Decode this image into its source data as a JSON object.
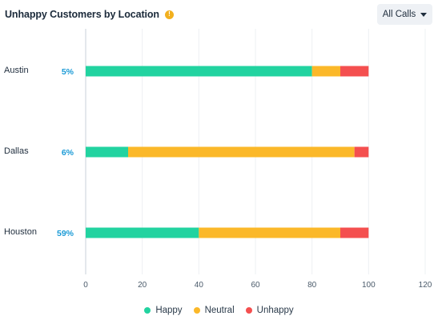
{
  "header": {
    "title": "Unhappy Customers by Location",
    "info_icon": "info-icon"
  },
  "filter": {
    "label": "All Calls",
    "icon": "caret-down-icon"
  },
  "colors": {
    "happy": "#22d3a0",
    "neutral": "#fbb829",
    "unhappy": "#f44f4f",
    "percent": "#1a9ad6"
  },
  "chart_data": {
    "type": "bar",
    "orientation": "horizontal",
    "stacked": true,
    "title": "Unhappy Customers by Location",
    "categories": [
      "Austin",
      "Dallas",
      "Houston"
    ],
    "category_percentages": [
      "5%",
      "6%",
      "59%"
    ],
    "series": [
      {
        "name": "Happy",
        "values": [
          80,
          15,
          40
        ]
      },
      {
        "name": "Neutral",
        "values": [
          10,
          80,
          50
        ]
      },
      {
        "name": "Unhappy",
        "values": [
          10,
          5,
          10
        ]
      }
    ],
    "xlim": [
      0,
      120
    ],
    "xticks": [
      "0",
      "20",
      "40",
      "60",
      "80",
      "100",
      "120"
    ],
    "grid": "vertical",
    "legend": "bottom-center"
  }
}
